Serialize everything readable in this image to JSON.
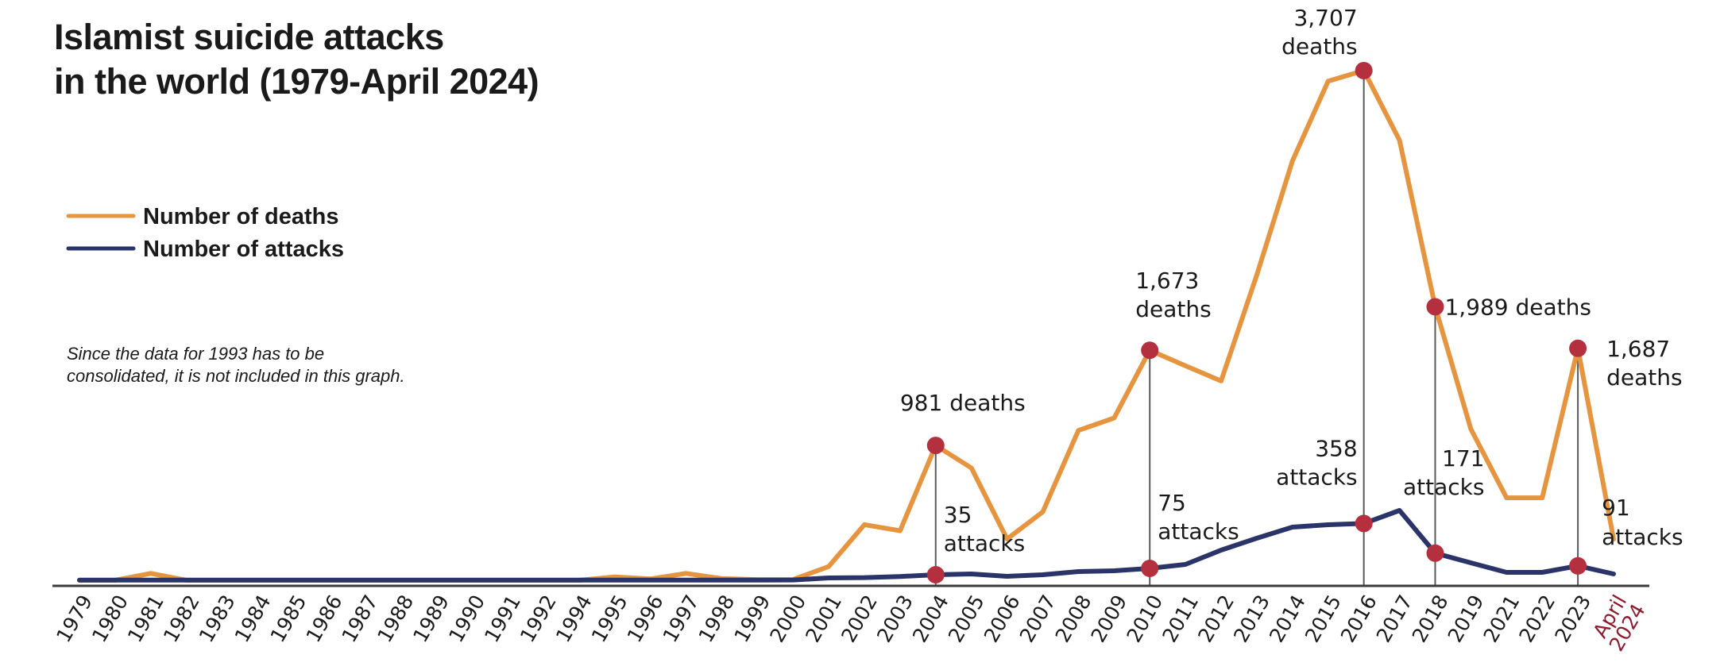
{
  "chart_data": {
    "type": "line",
    "title_lines": [
      "Islamist suicide attacks",
      "in the world (1979-April 2024)"
    ],
    "xlabel": "",
    "ylabel": "",
    "grid": false,
    "legend_position": "left",
    "note_lines": [
      "Since the data for 1993 has to be",
      "consolidated, it is not included in this graph."
    ],
    "categories": [
      "1979",
      "1980",
      "1981",
      "1982",
      "1983",
      "1984",
      "1985",
      "1986",
      "1987",
      "1988",
      "1989",
      "1990",
      "1991",
      "1992",
      "1994",
      "1995",
      "1996",
      "1997",
      "1998",
      "1999",
      "2000",
      "2001",
      "2002",
      "2003",
      "2004",
      "2005",
      "2006",
      "2007",
      "2008",
      "2009",
      "2010",
      "2011",
      "2012",
      "2013",
      "2014",
      "2015",
      "2016",
      "2017",
      "2018",
      "2019",
      "2021",
      "2022",
      "2023",
      "April 2024"
    ],
    "highlight_category": "April 2024",
    "series": [
      {
        "name": "Number of deaths",
        "color": "#e5953f",
        "values": [
          0,
          0,
          50,
          0,
          0,
          0,
          0,
          0,
          0,
          0,
          0,
          0,
          0,
          0,
          0,
          25,
          10,
          50,
          12,
          5,
          5,
          100,
          405,
          360,
          981,
          817,
          300,
          497,
          1090,
          1180,
          1673,
          1560,
          1450,
          2220,
          3050,
          3630,
          3707,
          3200,
          1989,
          1100,
          600,
          600,
          1687,
          300
        ]
      },
      {
        "name": "Number of attacks",
        "color": "#2b3468",
        "values": [
          1,
          1,
          1,
          1,
          1,
          1,
          1,
          1,
          1,
          1,
          1,
          1,
          1,
          1,
          1,
          1,
          1,
          1,
          1,
          1,
          2,
          15,
          17,
          24,
          35,
          40,
          25,
          35,
          55,
          60,
          75,
          100,
          190,
          265,
          335,
          350,
          358,
          440,
          171,
          110,
          50,
          50,
          91,
          40
        ]
      }
    ],
    "ylim": [
      0,
      3900
    ],
    "annotations": [
      {
        "category": "2004",
        "series": "Number of deaths",
        "lines": [
          "981 deaths"
        ]
      },
      {
        "category": "2004",
        "series": "Number of attacks",
        "lines": [
          "35",
          "attacks"
        ]
      },
      {
        "category": "2010",
        "series": "Number of deaths",
        "lines": [
          "1,673",
          "deaths"
        ]
      },
      {
        "category": "2010",
        "series": "Number of attacks",
        "lines": [
          "75",
          "attacks"
        ]
      },
      {
        "category": "2016",
        "series": "Number of deaths",
        "lines": [
          "3,707",
          "deaths"
        ]
      },
      {
        "category": "2016",
        "series": "Number of attacks",
        "lines": [
          "358",
          "attacks"
        ]
      },
      {
        "category": "2018",
        "series": "Number of deaths",
        "lines": [
          "1,989 deaths"
        ]
      },
      {
        "category": "2018",
        "series": "Number of attacks",
        "lines": [
          "171",
          "attacks"
        ]
      },
      {
        "category": "2023",
        "series": "Number of deaths",
        "lines": [
          "1,687",
          "deaths"
        ]
      },
      {
        "category": "2023",
        "series": "Number of attacks",
        "lines": [
          "91",
          "attacks"
        ]
      }
    ],
    "marker_color": "#b5303f",
    "highlight_color": "#8a1c2e"
  }
}
